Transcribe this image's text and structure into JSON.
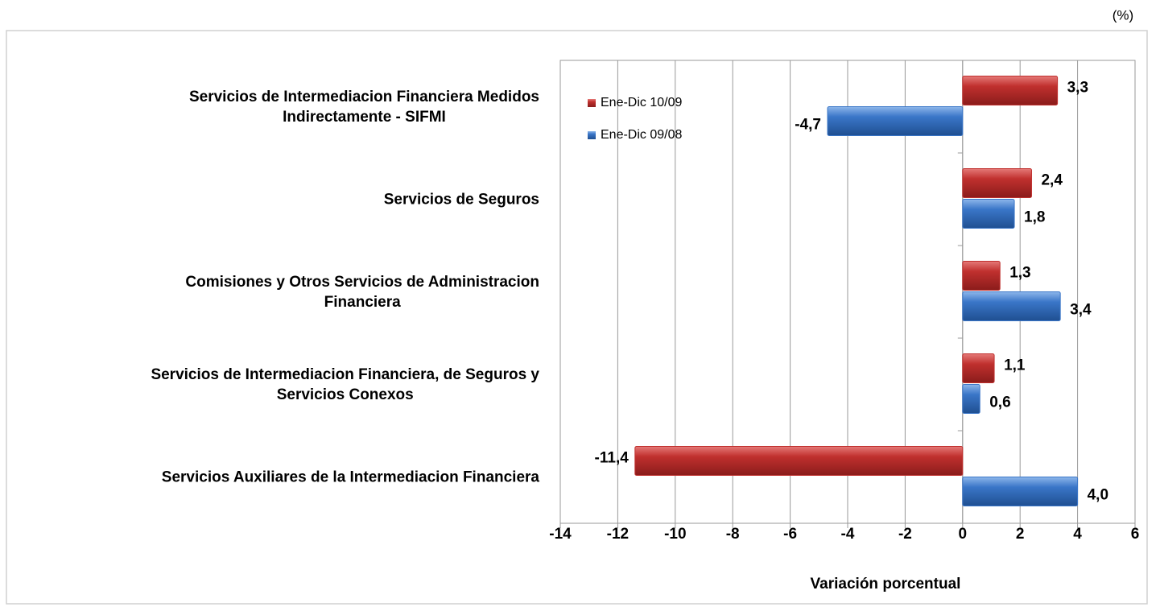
{
  "chart_data": {
    "type": "hbar",
    "unit_note": "(%)",
    "x_axis_label": "Variación porcentual",
    "categories": [
      [
        "Servicios de Intermediacion Financiera Medidos",
        "Indirectamente - SIFMI"
      ],
      [
        "Servicios de Seguros"
      ],
      [
        "Comisiones y Otros Servicios de Administracion",
        "Financiera"
      ],
      [
        "Servicios de Intermediacion Financiera, de Seguros y",
        "Servicios Conexos"
      ],
      [
        "Servicios Auxiliares de la Intermediacion Financiera"
      ]
    ],
    "series": [
      {
        "name": "Ene-Dic 10/09",
        "color": "#c0302e",
        "values": [
          3.3,
          2.4,
          1.3,
          1.1,
          -11.4
        ],
        "value_labels": [
          "3,3",
          "2,4",
          "1,3",
          "1,1",
          "-11,4"
        ]
      },
      {
        "name": "Ene-Dic 09/08",
        "color": "#3a76c8",
        "values": [
          -4.7,
          1.8,
          3.4,
          0.6,
          4.0
        ],
        "value_labels": [
          "-4,7",
          "1,8",
          "3,4",
          "0,6",
          "4,0"
        ]
      }
    ],
    "xlim": [
      -14,
      6
    ],
    "xticks": [
      -14,
      -12,
      -10,
      -8,
      -6,
      -4,
      -2,
      0,
      2,
      4,
      6
    ],
    "grid": true,
    "legend": "top-left"
  }
}
